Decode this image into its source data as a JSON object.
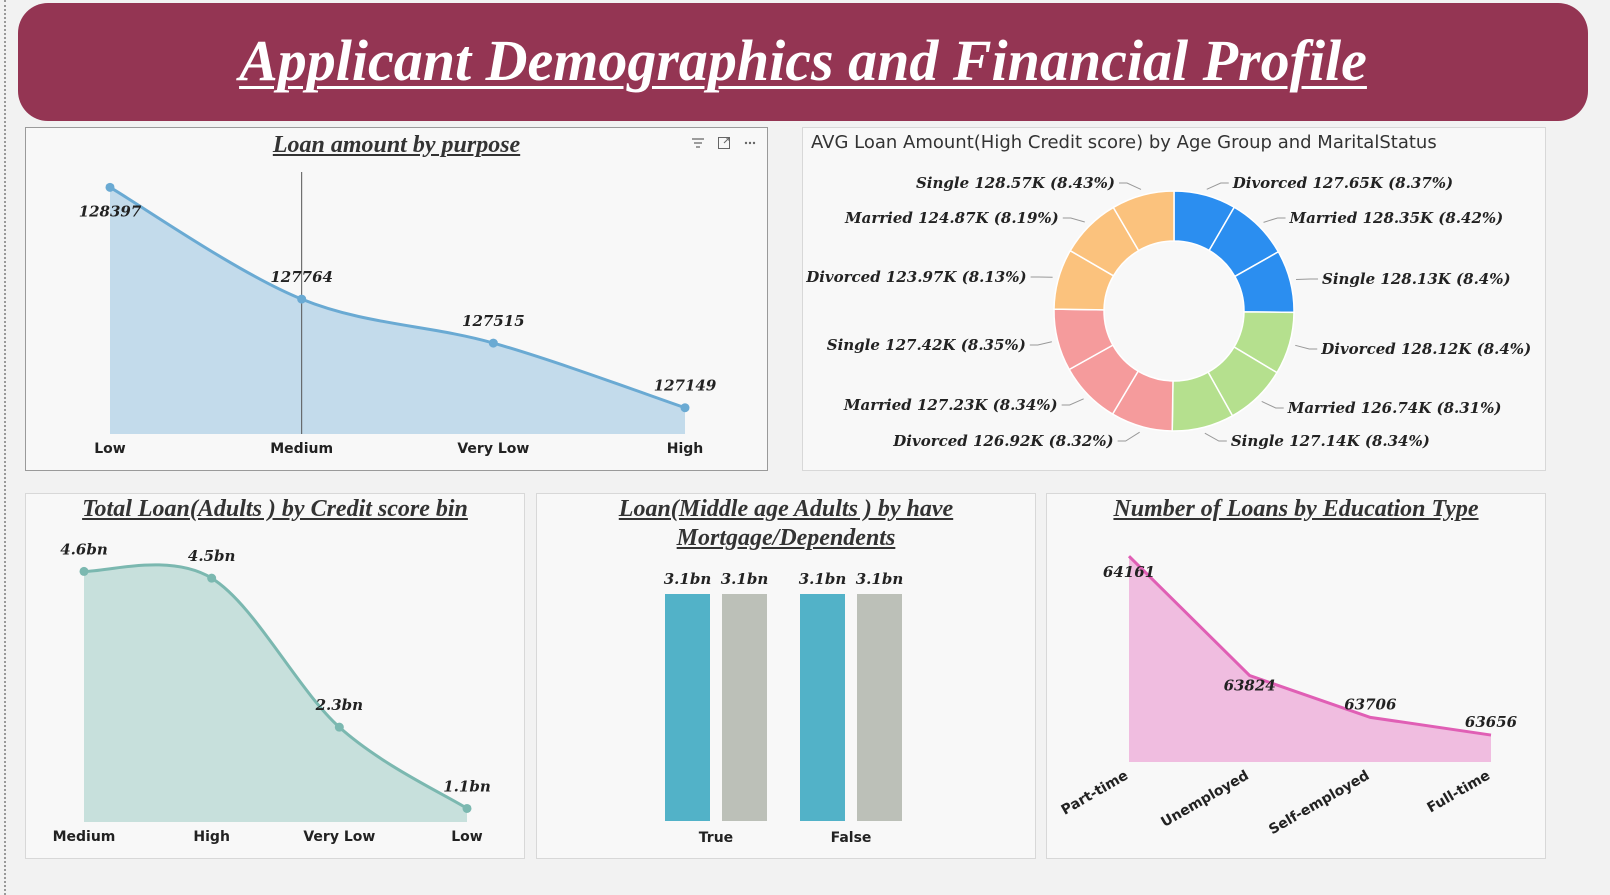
{
  "page": {
    "title": "Applicant Demographics and Financial Profile"
  },
  "toolbar_icons": [
    "filter-icon",
    "focus-mode-icon",
    "more-options-icon"
  ],
  "chart_data": [
    {
      "id": "loan-purpose",
      "type": "area",
      "title": "Loan amount by purpose",
      "categories": [
        "Low",
        "Medium",
        "Very Low",
        "High"
      ],
      "values": [
        128397,
        127764,
        127515,
        127149
      ],
      "labels": [
        "128397",
        "127764",
        "127515",
        "127149"
      ],
      "color": "#6aaad3",
      "fill": "#c3dbeb",
      "ylim": [
        127000,
        128450
      ]
    },
    {
      "id": "marital-donut",
      "type": "pie",
      "title": "AVG Loan Amount(High Credit score) by Age Group and MaritalStatus",
      "slices": [
        {
          "label": "Divorced 127.65K (8.37%)",
          "value": 127.65,
          "percent": 8.37,
          "color": "#2b8ef0"
        },
        {
          "label": "Married 128.35K (8.42%)",
          "value": 128.35,
          "percent": 8.42,
          "color": "#2b8ef0"
        },
        {
          "label": "Single 128.13K (8.4%)",
          "value": 128.13,
          "percent": 8.4,
          "color": "#2b8ef0"
        },
        {
          "label": "Divorced 128.12K (8.4%)",
          "value": 128.12,
          "percent": 8.4,
          "color": "#b5e08e"
        },
        {
          "label": "Married 126.74K (8.31%)",
          "value": 126.74,
          "percent": 8.31,
          "color": "#b5e08e"
        },
        {
          "label": "Single 127.14K (8.34%)",
          "value": 127.14,
          "percent": 8.34,
          "color": "#b5e08e"
        },
        {
          "label": "Divorced 126.92K (8.32%)",
          "value": 126.92,
          "percent": 8.32,
          "color": "#f59b9c"
        },
        {
          "label": "Married 127.23K (8.34%)",
          "value": 127.23,
          "percent": 8.34,
          "color": "#f59b9c"
        },
        {
          "label": "Single 127.42K (8.35%)",
          "value": 127.42,
          "percent": 8.35,
          "color": "#f59b9c"
        },
        {
          "label": "Divorced 123.97K (8.13%)",
          "value": 123.97,
          "percent": 8.13,
          "color": "#fbc27d"
        },
        {
          "label": "Married 124.87K (8.19%)",
          "value": 124.87,
          "percent": 8.19,
          "color": "#fbc27d"
        },
        {
          "label": "Single 128.57K (8.43%)",
          "value": 128.57,
          "percent": 8.43,
          "color": "#fbc27d"
        }
      ]
    },
    {
      "id": "credit-bin",
      "type": "area",
      "title": "Total Loan(Adults ) by Credit score bin",
      "categories": [
        "Medium",
        "High",
        "Very Low",
        "Low"
      ],
      "values": [
        4.6,
        4.5,
        2.3,
        1.1
      ],
      "labels": [
        "4.6bn",
        "4.5bn",
        "2.3bn",
        "1.1bn"
      ],
      "color": "#7bb8b0",
      "fill": "#c7e0dc",
      "ylim": [
        0.9,
        4.65
      ]
    },
    {
      "id": "mortgage",
      "type": "bar",
      "title": "Loan(Middle age Adults ) by have Mortgage/Dependents",
      "categories": [
        "True",
        "False"
      ],
      "series": [
        {
          "values": [
            3.1,
            3.1
          ],
          "labels": [
            "3.1bn",
            "3.1bn"
          ],
          "color": "#52b2c8"
        },
        {
          "values": [
            3.1,
            3.1
          ],
          "labels": [
            "3.1bn",
            "3.1bn"
          ],
          "color": "#bcc0b8"
        }
      ],
      "ylim": [
        0,
        3.1
      ]
    },
    {
      "id": "education",
      "type": "area",
      "title": "Number of Loans by Education Type",
      "categories": [
        "Part-time",
        "Unemployed",
        "Self-employed",
        "Full-time"
      ],
      "values": [
        64161,
        63824,
        63706,
        63656
      ],
      "labels": [
        "64161",
        "63824",
        "63706",
        "63656"
      ],
      "color": "#e05fb5",
      "fill": "#f0bde0",
      "ylim": [
        63580,
        64170
      ]
    }
  ]
}
